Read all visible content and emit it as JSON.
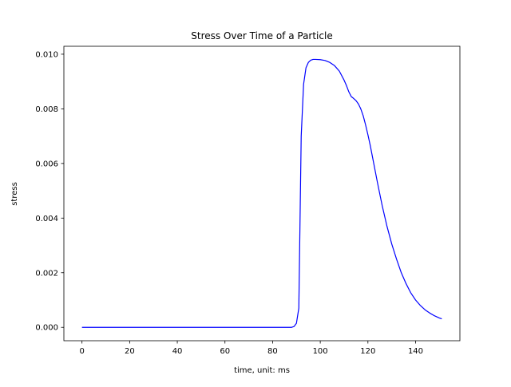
{
  "chart_data": {
    "type": "line",
    "title": "Stress Over Time of a Particle",
    "xlabel": "time, unit: ms",
    "ylabel": "stress",
    "xlim": [
      -7.6,
      158.6
    ],
    "ylim": [
      -0.00049,
      0.01029
    ],
    "xticks": [
      0,
      20,
      40,
      60,
      80,
      100,
      120,
      140
    ],
    "yticks": [
      0.0,
      0.002,
      0.004,
      0.006,
      0.008,
      0.01
    ],
    "xtick_labels": [
      "0",
      "20",
      "40",
      "60",
      "80",
      "100",
      "120",
      "140"
    ],
    "ytick_labels": [
      "0.000",
      "0.002",
      "0.004",
      "0.006",
      "0.008",
      "0.010"
    ],
    "grid": false,
    "series": [
      {
        "color": "#0000ff",
        "x": [
          0,
          20,
          40,
          60,
          80,
          88,
          89,
          90,
          91,
          92,
          93,
          94,
          95,
          96,
          97,
          98,
          100,
          102,
          104,
          106,
          108,
          110,
          111,
          112,
          113,
          114,
          115,
          116,
          117,
          118,
          119,
          120,
          121,
          122,
          124,
          126,
          128,
          130,
          132,
          134,
          136,
          138,
          140,
          142,
          144,
          146,
          148,
          150,
          151
        ],
        "y": [
          0.0,
          0.0,
          0.0,
          0.0,
          0.0,
          0.0,
          3e-05,
          0.00015,
          0.0007,
          0.007,
          0.0089,
          0.0095,
          0.0097,
          0.00978,
          0.00981,
          0.00981,
          0.0098,
          0.00977,
          0.0097,
          0.00958,
          0.00938,
          0.00905,
          0.00885,
          0.00862,
          0.00845,
          0.00838,
          0.0083,
          0.00818,
          0.008,
          0.00775,
          0.00742,
          0.00705,
          0.00665,
          0.0062,
          0.0053,
          0.00445,
          0.0037,
          0.00305,
          0.0025,
          0.002,
          0.0016,
          0.00126,
          0.001,
          0.0008,
          0.00064,
          0.00052,
          0.00042,
          0.00034,
          0.00031
        ]
      }
    ]
  }
}
